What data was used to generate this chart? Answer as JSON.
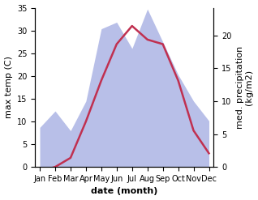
{
  "months": [
    "Jan",
    "Feb",
    "Mar",
    "Apr",
    "May",
    "Jun",
    "Jul",
    "Aug",
    "Sep",
    "Oct",
    "Nov",
    "Dec"
  ],
  "x": [
    0,
    1,
    2,
    3,
    4,
    5,
    6,
    7,
    8,
    9,
    10,
    11
  ],
  "temp": [
    -1,
    0,
    2,
    10,
    19,
    27,
    31,
    28,
    27,
    19,
    8,
    3
  ],
  "precip": [
    6,
    8.5,
    5.5,
    10,
    21,
    22,
    18,
    24,
    19,
    14,
    10,
    7
  ],
  "temp_color": "#c03050",
  "precip_fill_color": "#b8bfe8",
  "temp_ylim": [
    0,
    35
  ],
  "precip_ylim": [
    0,
    24.2
  ],
  "xlabel": "date (month)",
  "ylabel_left": "max temp (C)",
  "ylabel_right": "med. precipitation\n(kg/m2)",
  "tick_fontsize": 7,
  "label_fontsize": 8,
  "line_width": 1.8
}
